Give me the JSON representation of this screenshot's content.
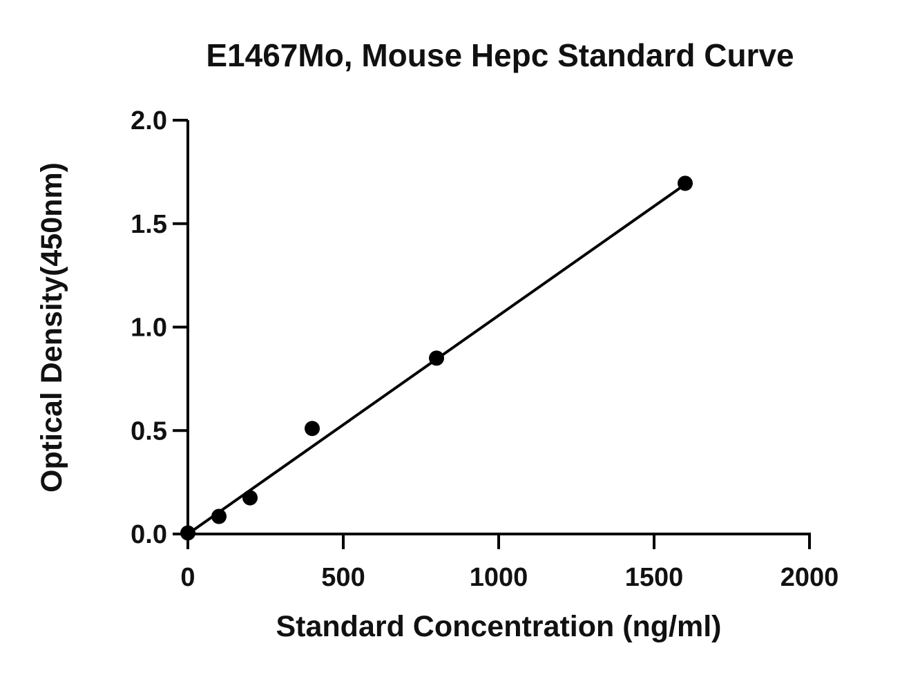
{
  "chart_data": {
    "type": "scatter",
    "title": "E1467Mo, Mouse Hepc Standard Curve",
    "xlabel": "Standard Concentration (ng/ml)",
    "ylabel": "Optical Density(450nm)",
    "xlim": [
      0,
      2000
    ],
    "ylim": [
      0,
      2.0
    ],
    "x_ticks": [
      "0",
      "500",
      "1000",
      "1500",
      "2000"
    ],
    "y_ticks": [
      "0.0",
      "0.5",
      "1.0",
      "1.5",
      "2.0"
    ],
    "grid": false,
    "series": [
      {
        "x": [
          0,
          100,
          200,
          400,
          800,
          1600
        ],
        "y": [
          0.005,
          0.085,
          0.175,
          0.51,
          0.85,
          1.695
        ]
      }
    ],
    "fit_line": {
      "x": [
        0,
        1600
      ],
      "y": [
        0.0,
        1.69
      ]
    },
    "colors": {
      "points": "#000000",
      "line": "#000000",
      "axes": "#000000"
    }
  }
}
